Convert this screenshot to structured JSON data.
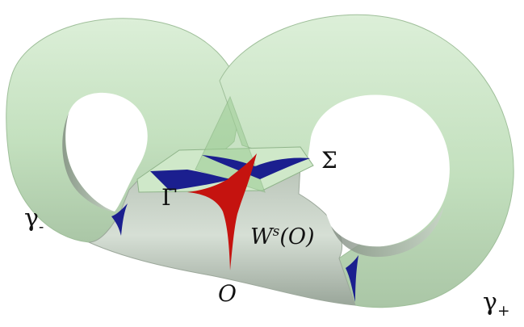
{
  "labels": {
    "sigma": "Σ",
    "gamma": "Γ",
    "gamma_minus_base": "γ",
    "gamma_minus_sub": "-",
    "ws_base": "W",
    "ws_sup": "s",
    "ws_arg": "(O)",
    "origin": "O",
    "gamma_plus_base": "γ",
    "gamma_plus_sub": "+"
  },
  "colors": {
    "surface_light": "#d4ead0",
    "surface_mid": "#b7d8b2",
    "surface_shadow": "#8e9a8e",
    "unstable_sheet": "#1b1f8f",
    "stable_manifold": "#c5130f",
    "background": "#ffffff"
  }
}
